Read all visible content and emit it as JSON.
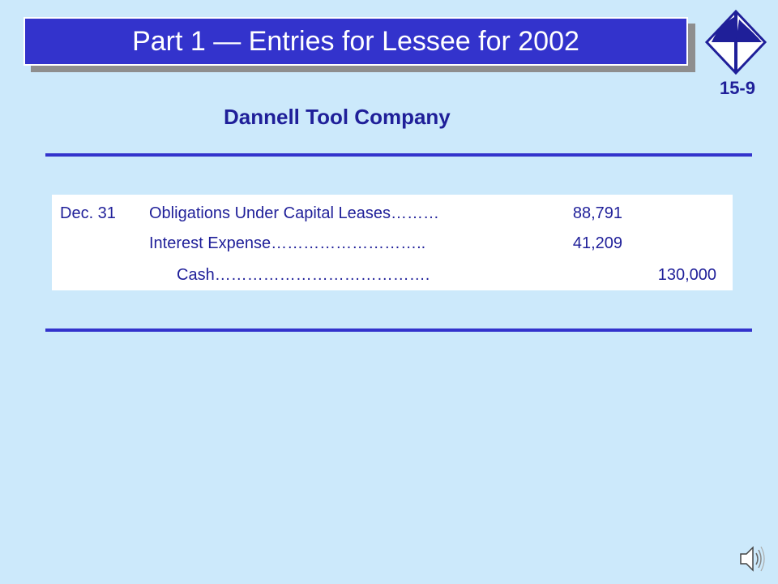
{
  "title": "Part 1 — Entries for Lessee for 2002",
  "slide_number": "15-9",
  "company": "Dannell Tool Company",
  "journal": {
    "date": "Dec. 31",
    "entries": [
      {
        "account": "Obligations Under Capital Leases………",
        "debit": "88,791",
        "credit": ""
      },
      {
        "account": "Interest Expense………………………..",
        "debit": "41,209",
        "credit": ""
      },
      {
        "account": "Cash………………………………….",
        "debit": "",
        "credit": "130,000"
      }
    ]
  },
  "colors": {
    "background": "#cce9fb",
    "title_bar": "#3333cc",
    "text": "#1f1f99",
    "rule": "#3333cc"
  },
  "icons": [
    "publisher-logo-icon",
    "speaker-icon"
  ]
}
